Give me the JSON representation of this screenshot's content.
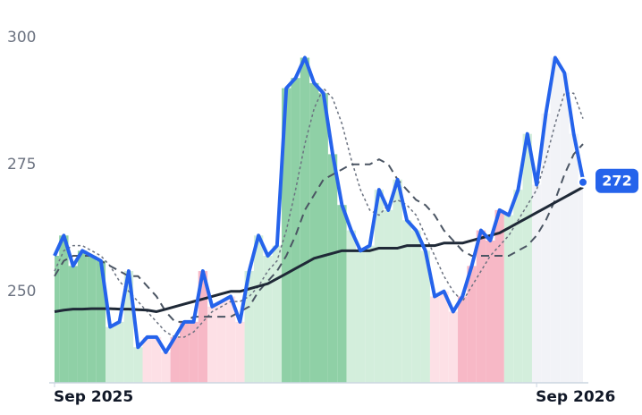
{
  "chart_data": {
    "type": "line",
    "xlim": [
      0,
      57
    ],
    "xticks": [
      {
        "value": 0,
        "label": "Sep 2025"
      },
      {
        "value": 52,
        "label": "Sep 2026"
      }
    ],
    "ylim": [
      232,
      302
    ],
    "yticks": [
      250,
      275,
      300
    ],
    "grid": false,
    "band_colors": [
      "#8fd0a6",
      "#8fd0a6",
      "#8fd0a6",
      "#8fd0a6",
      "#8fd0a6",
      "#8fd0a6",
      "#d3eedc",
      "#d3eedc",
      "#d3eedc",
      "#d3eedc",
      "#fde0e6",
      "#fde0e6",
      "#fde0e6",
      "#f7b8c6",
      "#f7b8c6",
      "#f7b8c6",
      "#f7b8c6",
      "#fde0e6",
      "#fde0e6",
      "#fde0e6",
      "#fde0e6",
      "#d3eedc",
      "#d3eedc",
      "#d3eedc",
      "#d3eedc",
      "#8fd0a6",
      "#8fd0a6",
      "#8fd0a6",
      "#8fd0a6",
      "#8fd0a6",
      "#8fd0a6",
      "#8fd0a6",
      "#d3eedc",
      "#d3eedc",
      "#d3eedc",
      "#d3eedc",
      "#d3eedc",
      "#d3eedc",
      "#d3eedc",
      "#d3eedc",
      "#d3eedc",
      "#fde0e6",
      "#fde0e6",
      "#fde0e6",
      "#f7b8c6",
      "#f7b8c6",
      "#f7b8c6",
      "#f7b8c6",
      "#f7b8c6",
      "#d3eedc",
      "#d3eedc",
      "#d3eedc",
      "#f2f3f7",
      "#f2f3f7",
      "#f2f3f7",
      "#f2f3f7",
      "#f2f3f7",
      "#f2f3f7"
    ],
    "series": [
      {
        "color": "#2563eb",
        "style": "solid",
        "width": 4,
        "values": [
          257,
          261,
          255,
          258,
          257,
          256,
          243,
          244,
          254,
          239,
          241,
          241,
          238,
          241,
          244,
          244,
          254,
          247,
          248,
          249,
          244,
          254,
          261,
          257,
          259,
          290,
          292,
          296,
          291,
          289,
          277,
          267,
          262,
          258,
          259,
          270,
          266,
          272,
          264,
          262,
          258,
          249,
          250,
          246,
          249,
          255,
          262,
          260,
          266,
          265,
          270,
          281,
          271,
          285,
          296,
          293,
          281,
          272
        ]
      },
      {
        "color": "#1f2937",
        "style": "solid",
        "width": 3,
        "values": [
          246,
          246.3,
          246.5,
          246.5,
          246.6,
          246.6,
          246.6,
          246.5,
          246.5,
          246.4,
          246.3,
          246,
          246.5,
          247,
          247.5,
          248,
          248.5,
          249,
          249.5,
          250,
          250,
          250.5,
          251,
          251.5,
          252.5,
          253.5,
          254.5,
          255.5,
          256.5,
          257,
          257.5,
          258,
          258,
          258,
          258,
          258.5,
          258.5,
          258.5,
          259,
          259,
          259,
          259,
          259.5,
          259.5,
          259.5,
          260,
          260.5,
          261,
          261.5,
          262.5,
          263.5,
          264.5,
          265.5,
          266.5,
          267.5,
          268.5,
          269.5,
          270.5
        ]
      },
      {
        "color": "#4b5563",
        "style": "dashed",
        "width": 2,
        "values": [
          253,
          256,
          257,
          257,
          257,
          256,
          255,
          254,
          253,
          253,
          251,
          249,
          246,
          244,
          244,
          245,
          245,
          245,
          245,
          245,
          246,
          247,
          250,
          252,
          254,
          257,
          261,
          266,
          269,
          272,
          273,
          274,
          275,
          275,
          275,
          276,
          275,
          272,
          270,
          268,
          267,
          265,
          262,
          260,
          258,
          257,
          257,
          257,
          257,
          257,
          258,
          259,
          261,
          264,
          268,
          273,
          277,
          279
        ]
      },
      {
        "color": "#6b7280",
        "style": "dotted",
        "width": 1.5,
        "values": [
          254,
          258,
          259,
          259,
          258,
          257,
          255,
          252,
          250,
          248,
          246,
          244,
          242,
          241,
          241,
          242,
          244,
          246,
          247,
          248,
          248,
          249,
          251,
          254,
          256,
          262,
          270,
          279,
          286,
          290,
          288,
          283,
          276,
          270,
          266,
          265,
          267,
          268,
          267,
          265,
          261,
          257,
          253,
          250,
          248,
          251,
          254,
          257,
          259,
          261,
          264,
          267,
          270,
          276,
          283,
          289,
          289,
          284
        ]
      }
    ]
  }
}
